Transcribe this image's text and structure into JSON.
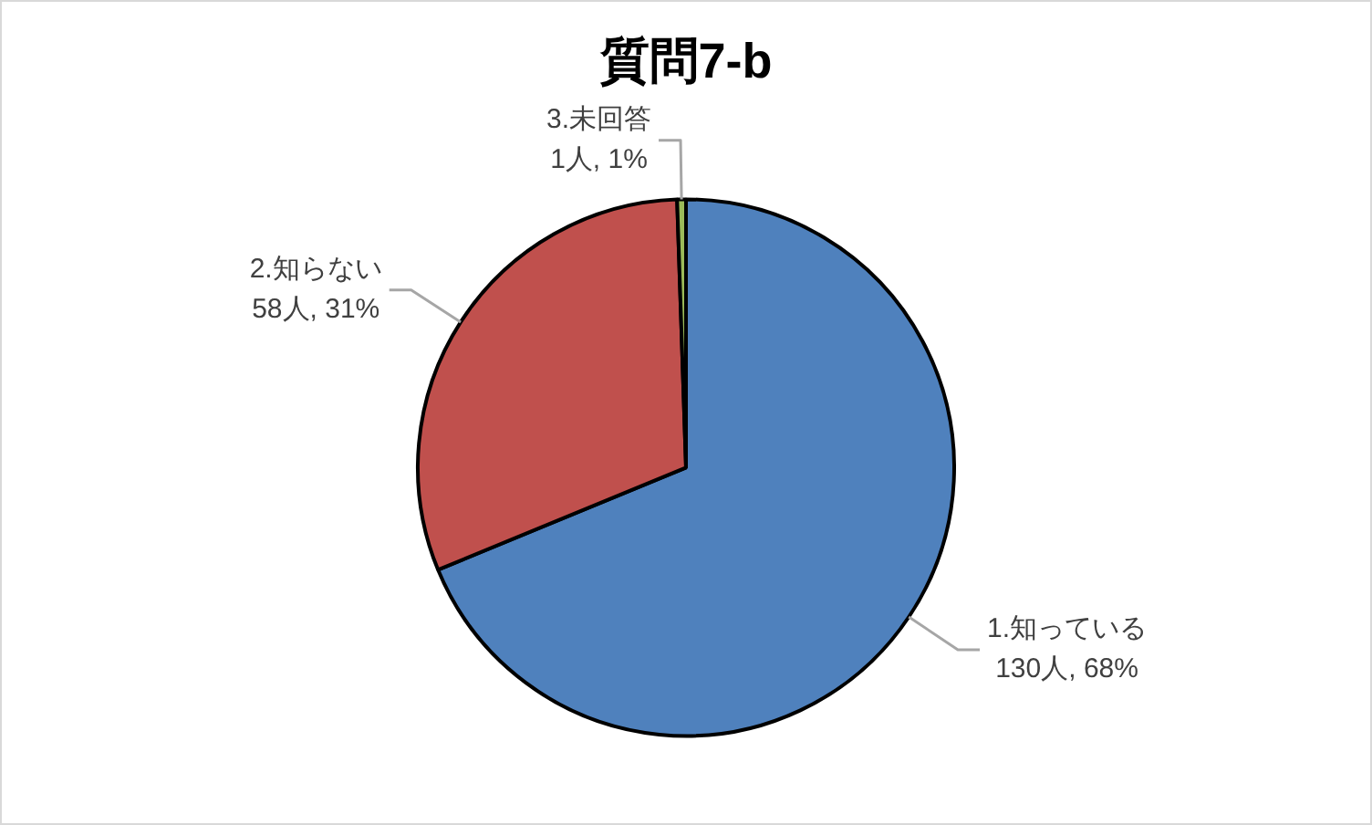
{
  "chart_data": {
    "type": "pie",
    "title": "質問7-b",
    "categories": [
      "1.知っている",
      "2.知らない",
      "3.未回答"
    ],
    "values": [
      130,
      58,
      1
    ],
    "colors": [
      "#4f81bd",
      "#c0504d",
      "#9bbb59"
    ],
    "value_labels": [
      "130人, 68%",
      "58人, 31%",
      "1人, 1%"
    ],
    "legend": false
  }
}
